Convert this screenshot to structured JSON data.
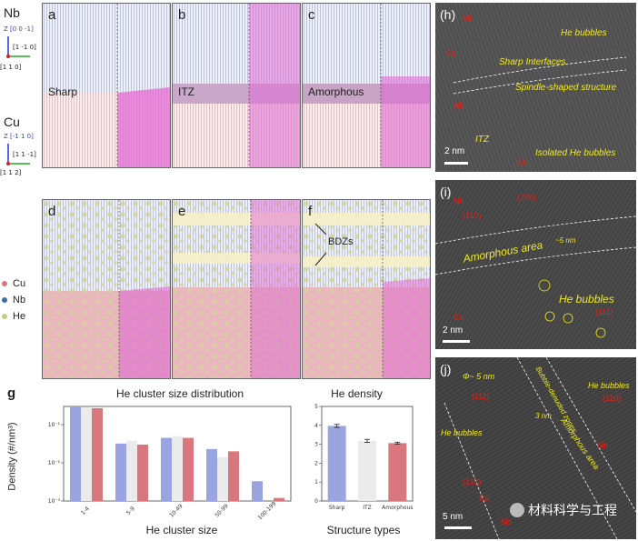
{
  "left_axes": {
    "nb_label": "Nb",
    "nb_z": "Z [0 0 -1]",
    "nb_y": "[1 -1 0]",
    "nb_x": "[1 1 0]",
    "cu_label": "Cu",
    "cu_z": "Z [-1 1 0]",
    "cu_y": "[1 1 -1]",
    "cu_x": "[1 1 2]"
  },
  "legend": [
    {
      "label": "Cu",
      "color": "#d9777f"
    },
    {
      "label": "Nb",
      "color": "#3b6fa8"
    },
    {
      "label": "He",
      "color": "#c9cc7a"
    }
  ],
  "top_panels": [
    {
      "letter": "a",
      "interface": "Sharp"
    },
    {
      "letter": "b",
      "interface": "ITZ"
    },
    {
      "letter": "c",
      "interface": "Amorphous"
    }
  ],
  "bottom_panels": [
    {
      "letter": "d"
    },
    {
      "letter": "e"
    },
    {
      "letter": "f",
      "annotation": "BDZs"
    }
  ],
  "panel_g": {
    "letter": "g",
    "left_title": "He cluster size distribution",
    "right_title": "He density",
    "ylabel": "Density (#/nm³)",
    "left_xlabel": "He cluster size",
    "right_xlabel": "Structure types"
  },
  "chart_data": [
    {
      "type": "bar",
      "title": "He cluster size distribution",
      "xlabel": "He cluster size",
      "ylabel": "Density (#/nm³)",
      "yscale": "log",
      "ylim": [
        0.001,
        0.3
      ],
      "yticks": [
        "10⁻³",
        "10⁻²",
        "10⁻¹"
      ],
      "categories": [
        "1-4",
        "5-9",
        "10-49",
        "50-99",
        "100-199"
      ],
      "series": [
        {
          "color": "#9aa4e0",
          "values": [
            0.3,
            0.032,
            0.045,
            0.023,
            0.0033
          ]
        },
        {
          "color": "#ebebeb",
          "values": [
            0.28,
            0.038,
            0.05,
            0.014,
            0.001
          ]
        },
        {
          "color": "#d9777f",
          "values": [
            0.27,
            0.03,
            0.045,
            0.02,
            0.0012
          ]
        }
      ]
    },
    {
      "type": "bar",
      "title": "He density",
      "xlabel": "Structure types",
      "ylim": [
        0,
        5
      ],
      "yticks": [
        "0",
        "1",
        "2",
        "3",
        "4",
        "5"
      ],
      "categories": [
        "Sharp",
        "ITZ",
        "Amorphous"
      ],
      "values": [
        3.97,
        3.18,
        3.06
      ],
      "errors": [
        0.08,
        0.08,
        0.05
      ],
      "colors": [
        "#9aa4e0",
        "#ebebeb",
        "#d9777f"
      ]
    }
  ],
  "tem_h": {
    "letter": "(h)",
    "annotations": [
      "He bubbles",
      "Sharp Interfaces",
      "Spindle-shaped structure",
      "ITZ",
      "Isolated He bubbles"
    ],
    "red_labels": [
      "Nb",
      "Cu",
      "Nb",
      "Cu"
    ],
    "scale": "2 nm"
  },
  "tem_i": {
    "letter": "(i)",
    "annotations": [
      "Amorphous area",
      "He bubbles",
      "~5 nm"
    ],
    "red_labels": [
      "Nb",
      "(110)",
      "(200)",
      "(111)",
      "Cu"
    ],
    "scale": "2 nm"
  },
  "tem_j": {
    "letter": "(j)",
    "annotations": [
      "Φ~ 5 nm",
      "Bubble-denuded zones",
      "He bubbles",
      "He bubbles",
      "3 nm",
      "Amorphous area"
    ],
    "red_labels": [
      "(111)",
      "(110)",
      "(110)",
      "Cu",
      "Nb",
      "Nb"
    ],
    "scale": "5 nm",
    "watermark": "材料科学与工程"
  }
}
